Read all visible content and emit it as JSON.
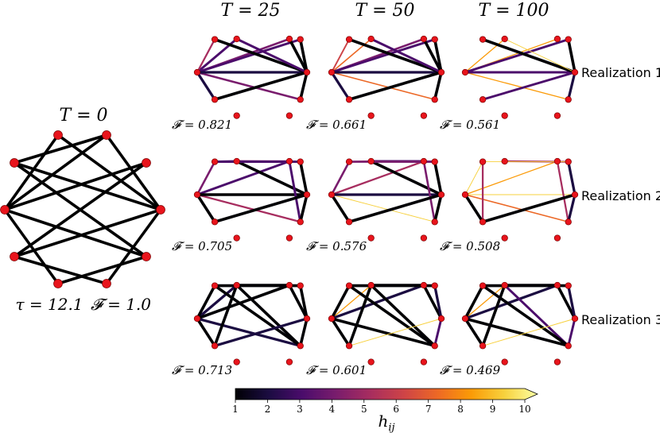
{
  "figure": {
    "initial": {
      "title": "T = 0",
      "tau_label": "τ = 12.1",
      "fidelity_label": "𝓕 = 1.0",
      "edges": [
        [
          0,
          2
        ],
        [
          0,
          3
        ],
        [
          0,
          5
        ],
        [
          0,
          6
        ],
        [
          1,
          3
        ],
        [
          1,
          4
        ],
        [
          1,
          5
        ],
        [
          1,
          6
        ],
        [
          2,
          4
        ],
        [
          2,
          6
        ],
        [
          3,
          7
        ],
        [
          4,
          7
        ],
        [
          5,
          7
        ],
        [
          6,
          7
        ]
      ],
      "edge_weight": 1
    },
    "columns": [
      {
        "title": "T = 25"
      },
      {
        "title": "T = 50"
      },
      {
        "title": "T = 100"
      }
    ],
    "rows": [
      {
        "label": "Realization 1"
      },
      {
        "label": "Realization 2"
      },
      {
        "label": "Realization 3"
      }
    ],
    "panels": [
      [
        {
          "fidelity": "𝓕 = 0.821",
          "edges": [
            [
              0,
              1,
              3
            ],
            [
              0,
              2,
              5
            ],
            [
              0,
              3,
              4
            ],
            [
              0,
              4,
              3
            ],
            [
              0,
              5,
              2
            ],
            [
              0,
              6,
              4
            ],
            [
              0,
              7,
              2
            ],
            [
              2,
              7,
              1
            ],
            [
              3,
              7,
              1
            ],
            [
              4,
              7,
              1
            ],
            [
              5,
              7,
              1
            ],
            [
              6,
              7,
              1
            ],
            [
              1,
              7,
              3
            ]
          ]
        },
        {
          "fidelity": "𝓕 = 0.661",
          "edges": [
            [
              0,
              1,
              7
            ],
            [
              0,
              2,
              6
            ],
            [
              0,
              3,
              4
            ],
            [
              0,
              4,
              3
            ],
            [
              0,
              5,
              2
            ],
            [
              0,
              6,
              7
            ],
            [
              0,
              7,
              2
            ],
            [
              2,
              7,
              1
            ],
            [
              3,
              7,
              1
            ],
            [
              4,
              7,
              1
            ],
            [
              5,
              7,
              1
            ],
            [
              6,
              7,
              1
            ],
            [
              1,
              7,
              3
            ]
          ]
        },
        {
          "fidelity": "𝓕 = 0.561",
          "edges": [
            [
              0,
              1,
              8
            ],
            [
              0,
              3,
              8
            ],
            [
              0,
              4,
              3
            ],
            [
              0,
              6,
              8
            ],
            [
              0,
              7,
              3
            ],
            [
              2,
              7,
              1
            ],
            [
              4,
              7,
              1
            ],
            [
              5,
              7,
              3
            ],
            [
              6,
              7,
              2
            ],
            [
              1,
              7,
              9
            ]
          ]
        }
      ],
      [
        {
          "fidelity": "𝓕 = 0.705",
          "edges": [
            [
              0,
              2,
              4
            ],
            [
              0,
              3,
              3
            ],
            [
              0,
              5,
              1
            ],
            [
              0,
              6,
              5
            ],
            [
              0,
              7,
              1
            ],
            [
              1,
              2,
              3
            ],
            [
              1,
              3,
              4
            ],
            [
              1,
              4,
              4
            ],
            [
              1,
              7,
              1
            ],
            [
              2,
              4,
              3
            ],
            [
              3,
              6,
              3
            ],
            [
              4,
              7,
              1
            ],
            [
              5,
              7,
              1
            ],
            [
              6,
              7,
              1
            ]
          ]
        },
        {
          "fidelity": "𝓕 = 0.576",
          "edges": [
            [
              0,
              2,
              4
            ],
            [
              0,
              3,
              5
            ],
            [
              0,
              5,
              1
            ],
            [
              0,
              6,
              9
            ],
            [
              0,
              7,
              2
            ],
            [
              1,
              2,
              5
            ],
            [
              1,
              3,
              3
            ],
            [
              1,
              4,
              3
            ],
            [
              1,
              7,
              1
            ],
            [
              2,
              4,
              4
            ],
            [
              3,
              6,
              4
            ],
            [
              4,
              7,
              1
            ],
            [
              5,
              7,
              1
            ],
            [
              6,
              7,
              1
            ]
          ]
        },
        {
          "fidelity": "𝓕 = 0.508",
          "edges": [
            [
              0,
              2,
              9
            ],
            [
              0,
              3,
              8
            ],
            [
              0,
              5,
              1
            ],
            [
              0,
              6,
              7
            ],
            [
              0,
              7,
              9
            ],
            [
              1,
              3,
              9
            ],
            [
              1,
              4,
              5
            ],
            [
              2,
              4,
              9
            ],
            [
              2,
              5,
              5
            ],
            [
              3,
              6,
              5
            ],
            [
              4,
              7,
              2
            ],
            [
              5,
              7,
              1
            ],
            [
              6,
              7,
              2
            ]
          ]
        }
      ],
      [
        {
          "fidelity": "𝓕 = 0.713",
          "edges": [
            [
              0,
              1,
              2
            ],
            [
              0,
              2,
              1
            ],
            [
              0,
              3,
              1
            ],
            [
              0,
              5,
              1
            ],
            [
              0,
              6,
              2
            ],
            [
              1,
              3,
              1
            ],
            [
              1,
              5,
              1
            ],
            [
              1,
              6,
              1
            ],
            [
              2,
              4,
              1
            ],
            [
              2,
              6,
              1
            ],
            [
              3,
              7,
              1
            ],
            [
              4,
              7,
              1
            ],
            [
              5,
              7,
              2
            ],
            [
              6,
              7,
              1
            ]
          ]
        },
        {
          "fidelity": "𝓕 = 0.601",
          "edges": [
            [
              0,
              1,
              8
            ],
            [
              0,
              2,
              1
            ],
            [
              0,
              3,
              2
            ],
            [
              0,
              5,
              1
            ],
            [
              0,
              6,
              1
            ],
            [
              1,
              3,
              1
            ],
            [
              1,
              5,
              1
            ],
            [
              1,
              6,
              1
            ],
            [
              2,
              4,
              1
            ],
            [
              2,
              6,
              1
            ],
            [
              3,
              7,
              1
            ],
            [
              4,
              7,
              2
            ],
            [
              5,
              7,
              9
            ],
            [
              6,
              7,
              3
            ]
          ]
        },
        {
          "fidelity": "𝓕 = 0.469",
          "edges": [
            [
              0,
              1,
              8
            ],
            [
              0,
              2,
              1
            ],
            [
              0,
              3,
              2
            ],
            [
              0,
              5,
              1
            ],
            [
              0,
              6,
              1
            ],
            [
              1,
              3,
              1
            ],
            [
              1,
              5,
              1
            ],
            [
              1,
              6,
              3
            ],
            [
              2,
              4,
              1
            ],
            [
              2,
              6,
              1
            ],
            [
              3,
              7,
              1
            ],
            [
              4,
              7,
              2
            ],
            [
              5,
              7,
              9
            ],
            [
              6,
              7,
              3
            ]
          ]
        }
      ]
    ],
    "colorbar": {
      "ticks": [
        "1",
        "2",
        "3",
        "4",
        "5",
        "6",
        "7",
        "8",
        "9",
        "10"
      ],
      "min": 1,
      "max": 10,
      "label": "h",
      "label_sub": "ij",
      "colormap": "inferno"
    },
    "colors": {
      "node_fill": "#e8141c",
      "node_stroke": "#7a0000"
    }
  }
}
